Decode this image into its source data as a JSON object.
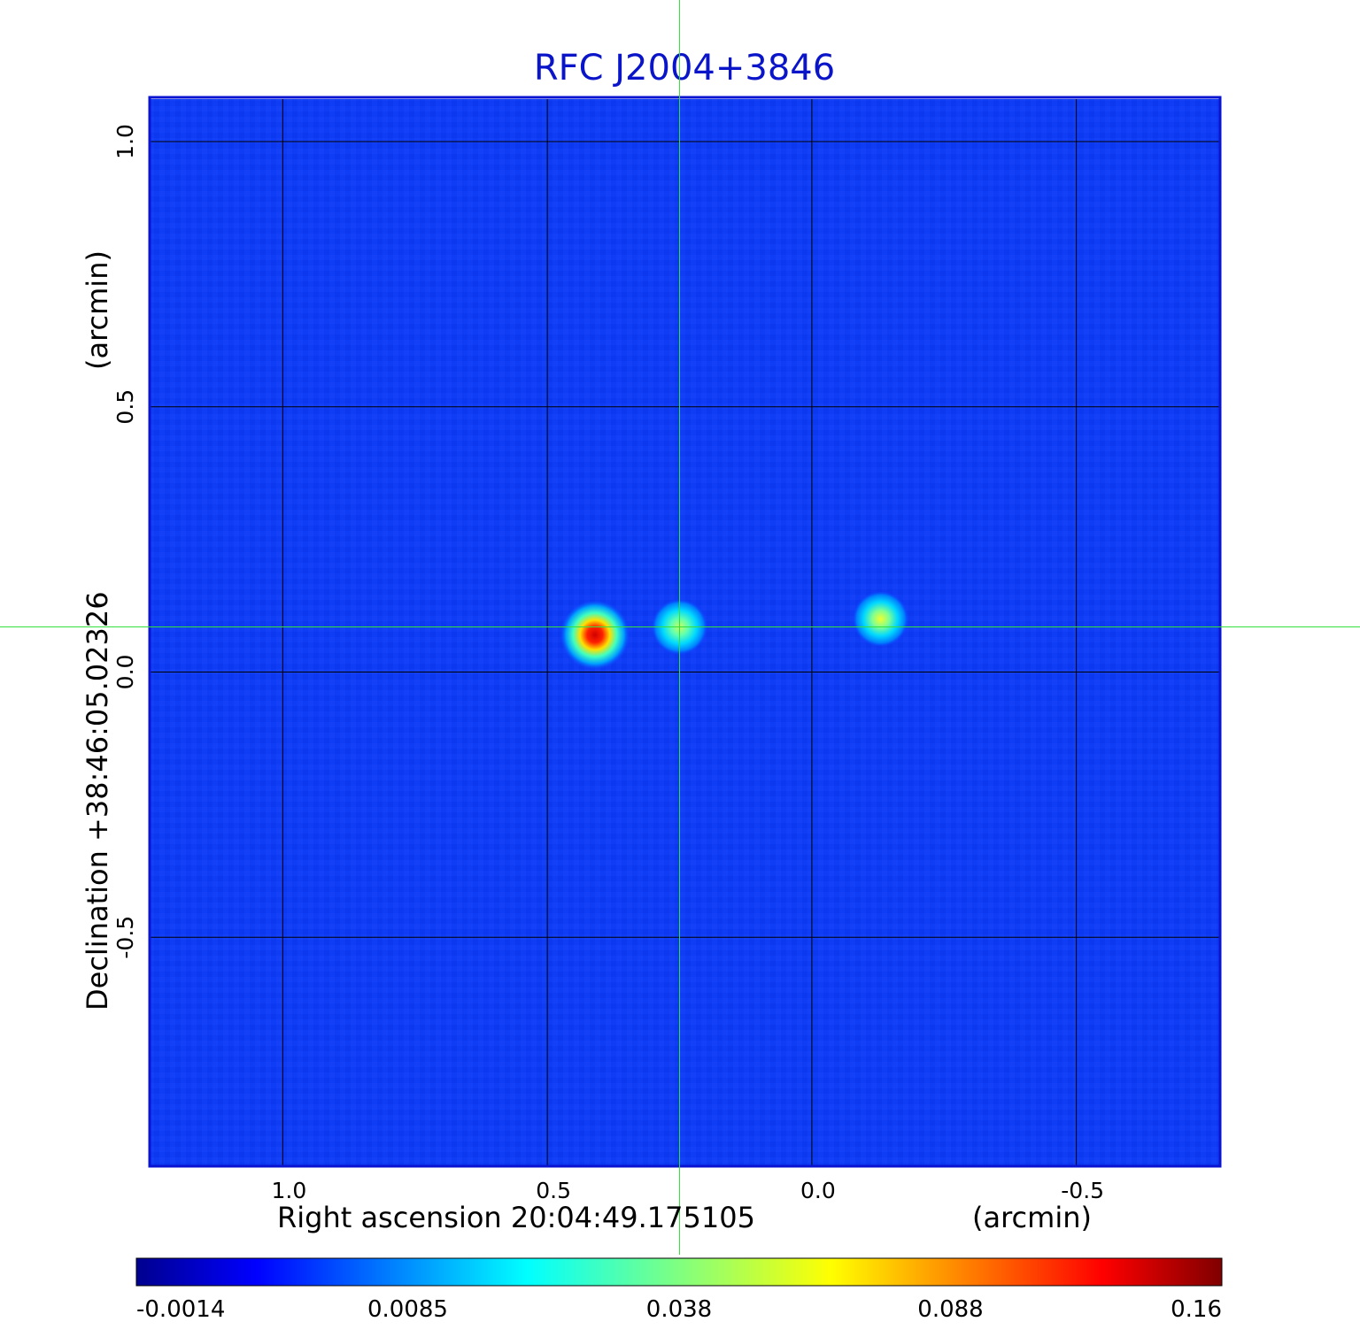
{
  "chart_data": {
    "type": "heatmap",
    "title": "RFC J2004+3846",
    "xlabel_main": "Right ascension  20:04:49.175105",
    "xlabel_unit": "(arcmin)",
    "ylabel_main": "Declination  +38:46:05.02326",
    "ylabel_unit": "(arcmin)",
    "xlim": [
      1.25,
      -0.77
    ],
    "ylim": [
      -0.93,
      1.08
    ],
    "x_ticks": [
      {
        "value": 1.0,
        "label": "1.0"
      },
      {
        "value": 0.5,
        "label": "0.5"
      },
      {
        "value": 0.0,
        "label": "0.0"
      },
      {
        "value": -0.5,
        "label": "-0.5"
      }
    ],
    "y_ticks": [
      {
        "value": 1.0,
        "label": "1.0"
      },
      {
        "value": 0.5,
        "label": "0.5"
      },
      {
        "value": 0.0,
        "label": "0.0"
      },
      {
        "value": -0.5,
        "label": "-0.5"
      }
    ],
    "grid": true,
    "colormap": "jet",
    "background_value": 0.0035,
    "sources": [
      {
        "x": 0.41,
        "y": 0.07,
        "peak": 0.16
      },
      {
        "x": 0.25,
        "y": 0.085,
        "peak": 0.045
      },
      {
        "x": -0.13,
        "y": 0.1,
        "peak": 0.055
      }
    ],
    "crosshair": {
      "x": 0.25,
      "y": 0.085
    },
    "colorbar": {
      "ticks": [
        {
          "value": -0.0014,
          "label": "-0.0014"
        },
        {
          "value": 0.0085,
          "label": "0.0085"
        },
        {
          "value": 0.038,
          "label": "0.038"
        },
        {
          "value": 0.088,
          "label": "0.088"
        },
        {
          "value": 0.16,
          "label": "0.16"
        }
      ]
    }
  }
}
